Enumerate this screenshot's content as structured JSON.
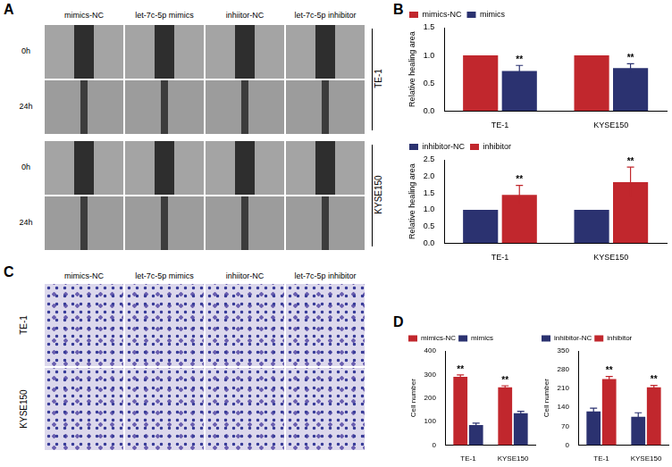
{
  "figure": {
    "panel_labels": [
      "A",
      "B",
      "C",
      "D"
    ],
    "wound_healing": {
      "columns": [
        "mimics-NC",
        "let-7c-5p mimics",
        "inhiitor-NC",
        "let-7c-5p inhibitor"
      ],
      "times": [
        "0h",
        "24h"
      ],
      "cell_lines": [
        "TE-1",
        "KYSE150"
      ]
    },
    "transwell": {
      "columns": [
        "mimics-NC",
        "let-7c-5p mimics",
        "inhiitor-NC",
        "let-7c-5p inhibitor"
      ],
      "cell_lines": [
        "TE-1",
        "KYSE150"
      ]
    }
  },
  "chart_data": [
    {
      "type": "bar",
      "categories": [
        "TE-1",
        "KYSE150"
      ],
      "y_label": "Relative healing area",
      "series": [
        {
          "name": "mimics-NC",
          "color": "#c1272d",
          "values": [
            1,
            1
          ]
        },
        {
          "name": "mimics",
          "color": "#2b3270",
          "values": [
            0.72,
            0.77
          ],
          "errors": [
            0.1,
            0.08
          ],
          "annotations": [
            "**",
            "**"
          ]
        }
      ],
      "ylim": [
        0,
        1.5
      ],
      "yticks": [
        {
          "value": 0,
          "label": "0.0"
        },
        0.5,
        {
          "value": 1,
          "label": "1.0"
        },
        1.5
      ],
      "grid": false,
      "legend": "top-left"
    },
    {
      "type": "bar",
      "categories": [
        "TE-1",
        "KYSE150"
      ],
      "y_label": "Relative healing area",
      "series": [
        {
          "name": "inhibitor-NC",
          "color": "#2b3270",
          "values": [
            1,
            1
          ]
        },
        {
          "name": "inhibitor",
          "color": "#c1272d",
          "values": [
            1.45,
            1.83
          ],
          "errors": [
            0.28,
            0.45
          ],
          "annotations": [
            "**",
            "**"
          ]
        }
      ],
      "ylim": [
        0,
        2.5
      ],
      "yticks": [
        {
          "value": 0,
          "label": "0.0"
        },
        0.5,
        {
          "value": 1,
          "label": "1.0"
        },
        1.5,
        {
          "value": 2,
          "label": "2.0"
        },
        2.5
      ],
      "grid": false,
      "legend": "top-left"
    },
    {
      "type": "bar",
      "categories": [
        "TE-1",
        "KYSE150"
      ],
      "y_label": "Cell number",
      "series": [
        {
          "name": "mimics-NC",
          "color": "#c1272d",
          "values": [
            290,
            245
          ],
          "errors": [
            8,
            7
          ],
          "annotations": [
            "**",
            "**"
          ]
        },
        {
          "name": "mimics",
          "color": "#2b3270",
          "values": [
            85,
            135
          ],
          "errors": [
            8,
            8
          ]
        }
      ],
      "ylim": [
        0,
        400
      ],
      "yticks": [
        0,
        100,
        200,
        300,
        400
      ],
      "grid": false,
      "legend": "top-left"
    },
    {
      "type": "bar",
      "categories": [
        "TE-1",
        "KYSE150"
      ],
      "y_label": "Cell number",
      "series": [
        {
          "name": "inhibitor-NC",
          "color": "#2b3270",
          "values": [
            125,
            105
          ],
          "errors": [
            12,
            15
          ]
        },
        {
          "name": "inhibitor",
          "color": "#c1272d",
          "values": [
            245,
            215
          ],
          "errors": [
            10,
            7
          ],
          "annotations": [
            "**",
            "**"
          ]
        }
      ],
      "ylim": [
        0,
        350
      ],
      "yticks": [
        0,
        70,
        140,
        210,
        280,
        350
      ],
      "grid": false,
      "legend": "top-left"
    }
  ]
}
